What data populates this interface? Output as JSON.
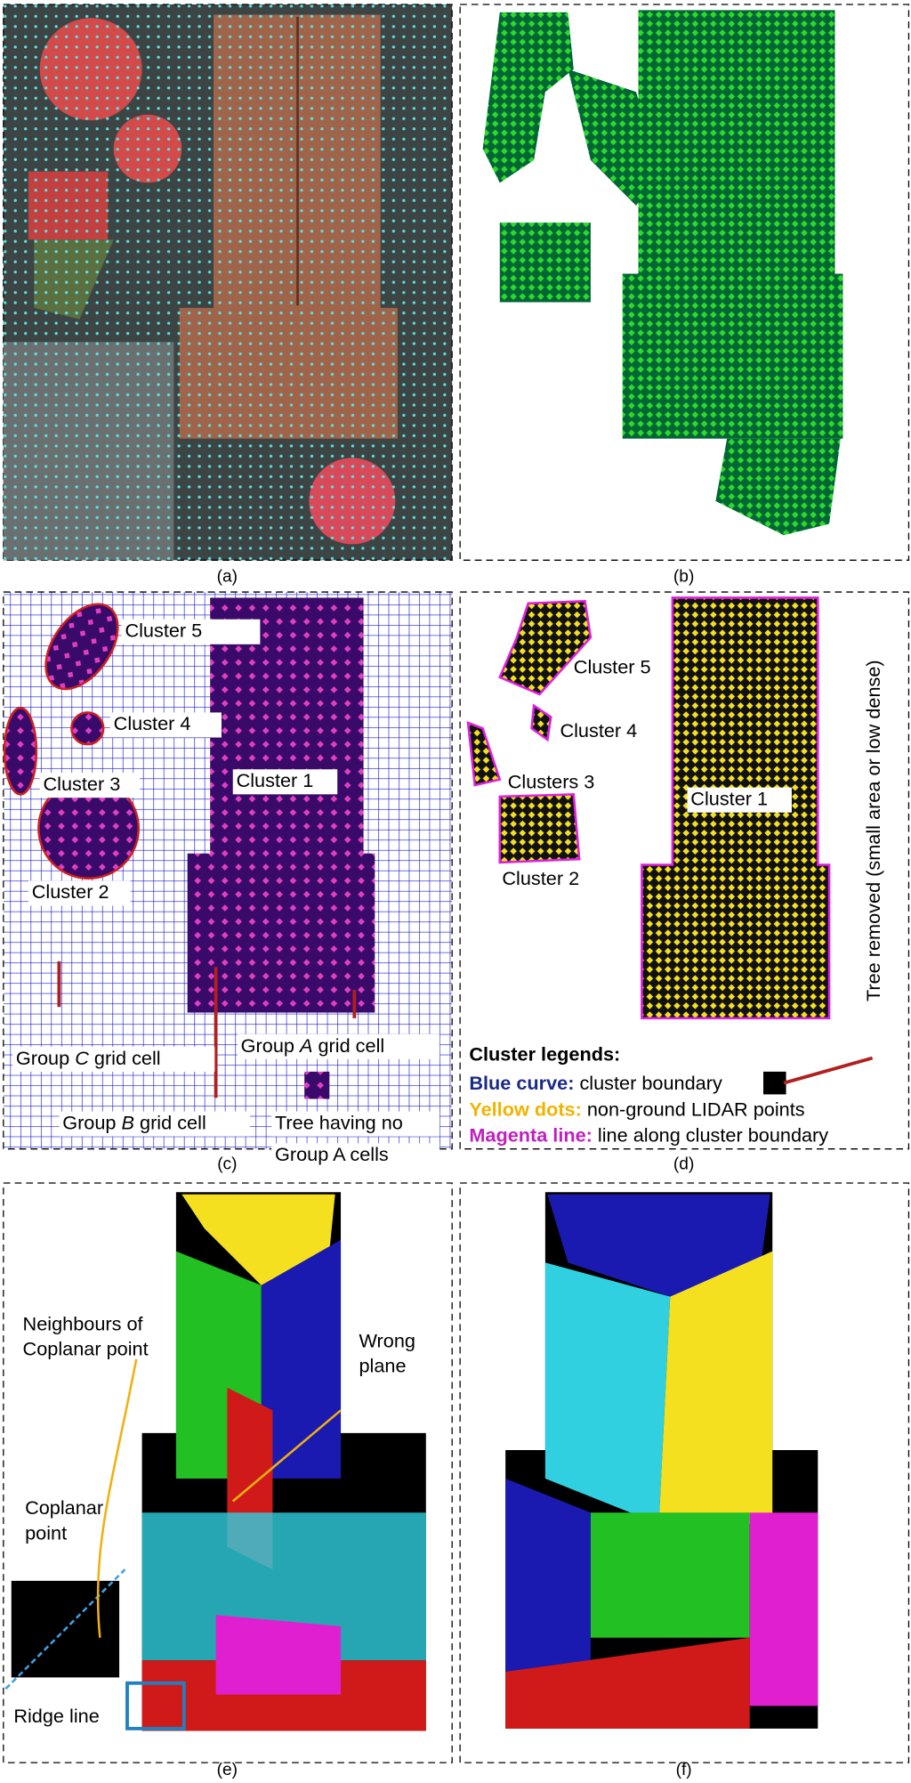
{
  "panels": {
    "a": {
      "label": "(a)"
    },
    "b": {
      "label": "(b)"
    },
    "c": {
      "label": "(c)",
      "cluster5": "Cluster 5",
      "cluster4": "Cluster 4",
      "cluster3": "Cluster 3",
      "cluster1": "Cluster 1",
      "cluster2": "Cluster 2",
      "group_c": {
        "prefix": "Group ",
        "letter": "C",
        "suffix": " grid cell"
      },
      "group_a": {
        "prefix": "Group ",
        "letter": "A",
        "suffix": " grid cell"
      },
      "group_b": {
        "prefix": "Group ",
        "letter": "B",
        "suffix": " grid cell"
      },
      "tree": [
        "Tree having no",
        "Group A cells"
      ]
    },
    "d": {
      "label": "(d)",
      "cluster5": "Cluster 5",
      "cluster4": "Cluster 4",
      "cluster3": "Clusters 3",
      "cluster1": "Cluster 1",
      "cluster2": "Cluster 2",
      "tree_removed": "Tree removed (small area or low dense)",
      "legend": {
        "title": "Cluster legends:",
        "items": [
          {
            "key": "Blue curve:",
            "text": " cluster boundary"
          },
          {
            "key": "Yellow dots:",
            "text": " non-ground LIDAR points"
          },
          {
            "key": "Magenta line:",
            "text": " line along cluster boundary"
          }
        ]
      }
    },
    "e": {
      "label": "(e)",
      "neighbours": [
        "Neighbours of",
        "Coplanar point"
      ],
      "wrong": [
        "Wrong",
        "plane"
      ],
      "coplanar": [
        "Coplanar",
        "point"
      ],
      "ridge": "Ridge line"
    },
    "f": {
      "label": "(f)"
    }
  }
}
